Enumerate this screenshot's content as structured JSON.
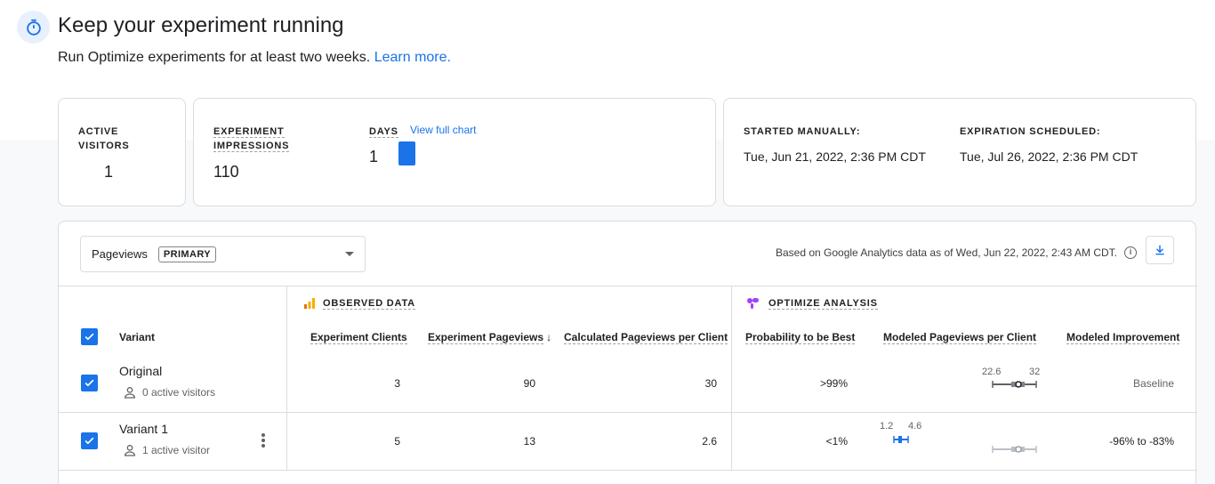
{
  "header": {
    "title": "Keep your experiment running",
    "subtitle": "Run Optimize experiments for at least two weeks.",
    "learn_more": "Learn more.",
    "icon": "stopwatch-icon"
  },
  "stats": {
    "active_visitors_label": "ACTIVE VISITORS",
    "active_visitors": "1",
    "impressions_label": "EXPERIMENT IMPRESSIONS",
    "impressions": "110",
    "days_label": "DAYS",
    "days": "1",
    "view_full_chart": "View full chart",
    "started_label": "STARTED MANUALLY:",
    "started_value": "Tue, Jun 21, 2022, 2:36 PM CDT",
    "expiration_label": "EXPIRATION SCHEDULED:",
    "expiration_value": "Tue, Jul 26, 2022, 2:36 PM CDT"
  },
  "toolbar": {
    "metric": "Pageviews",
    "metric_chip": "PRIMARY",
    "note": "Based on Google Analytics data as of Wed, Jun 22, 2022, 2:43 AM CDT."
  },
  "table": {
    "observed_label": "OBSERVED DATA",
    "optimize_label": "OPTIMIZE ANALYSIS",
    "columns": {
      "variant": "Variant",
      "clients": "Experiment Clients",
      "pageviews": "Experiment Pageviews",
      "per_client": "Calculated Pageviews per Client",
      "prob_best": "Probability to be Best",
      "modeled": "Modeled Pageviews per Client",
      "improvement": "Modeled Improvement"
    },
    "rows": [
      {
        "name": "Original",
        "visitors": "0 active visitors",
        "clients": "3",
        "pageviews": "90",
        "per_client": "30",
        "prob_best": ">99%",
        "range_low": "22.6",
        "range_high": "32",
        "improvement": "Baseline"
      },
      {
        "name": "Variant 1",
        "visitors": "1 active visitor",
        "clients": "5",
        "pageviews": "13",
        "per_client": "2.6",
        "prob_best": "<1%",
        "range_low": "1.2",
        "range_high": "4.6",
        "improvement": "-96% to -83%"
      }
    ]
  },
  "colors": {
    "accent": "#1a73e8",
    "border": "#dadce0",
    "analytics_orange": "#f9ab00",
    "optimize_purple": "#a142f4"
  }
}
